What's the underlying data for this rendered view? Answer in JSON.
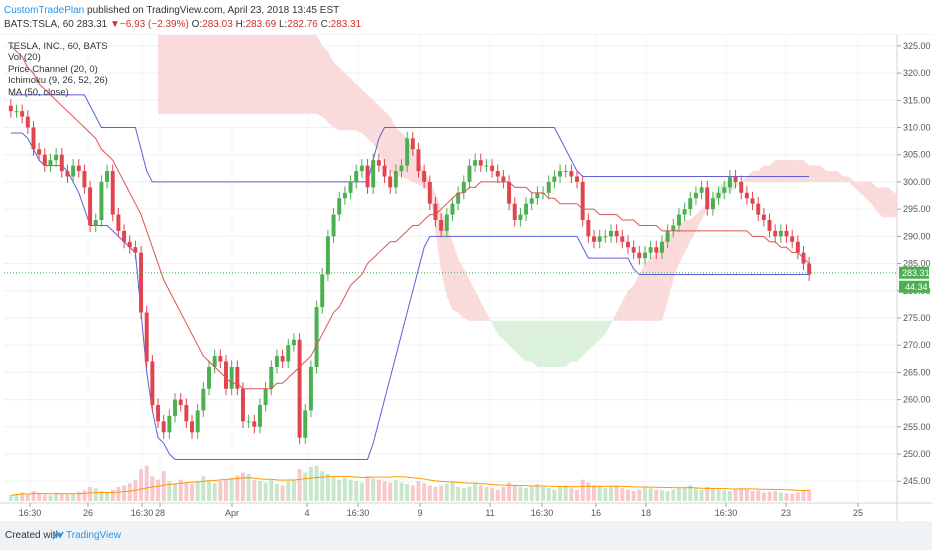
{
  "header": {
    "author": "CustomTradePlan",
    "published": "published on TradingView.com, April 23, 2018 13:45 EST",
    "symbol": "BATS:TSLA, 60",
    "last": "283.31",
    "change_arrow": "▼",
    "change": "−6.93 (−2.39%)",
    "open_label": "O:",
    "open": "283.03",
    "high_label": "H:",
    "high": "283.69",
    "low_label": "L:",
    "low": "282.76",
    "close_label": "C:",
    "close": "283.31"
  },
  "legend": {
    "title": "TESLA, INC., 60, BATS",
    "vol": "Vol (20)",
    "price_channel": "Price Channel (20, 0)",
    "ichimoku": "Ichimoku (9, 26, 52, 26)",
    "ma": "MA (50, close)"
  },
  "footer": {
    "created_with": "Created with",
    "brand": "TradingView",
    "logo_icon": "tradingview-logo-icon"
  },
  "colors": {
    "up": "#4caf50",
    "down": "#e0454f",
    "channel": "#5c5fd6",
    "ma": "#e05252",
    "cloud_bull": "#d6efd6",
    "cloud_bear": "#f9d3d3",
    "vol_ma": "#ff9800",
    "accent": "#2196f3"
  },
  "chart_data": {
    "type": "candlestick",
    "symbol": "BATS:TSLA",
    "interval": "60",
    "ylim": [
      241,
      327
    ],
    "y_ticks": [
      "325.00",
      "320.00",
      "315.00",
      "310.00",
      "305.00",
      "300.00",
      "295.00",
      "290.00",
      "285.00",
      "280.00",
      "275.00",
      "270.00",
      "265.00",
      "260.00",
      "255.00",
      "250.00",
      "245.00"
    ],
    "x_ticks": [
      "16:30",
      "26",
      "16:30",
      "28",
      "Apr",
      "4",
      "16:30",
      "9",
      "11",
      "16:30",
      "16",
      "18",
      "16:30",
      "23",
      "25"
    ],
    "price_label": "283.31",
    "secondary_label": "44.34",
    "close": [
      313,
      313,
      312,
      310,
      306,
      305,
      303,
      304,
      305,
      302,
      301,
      303,
      302,
      299,
      292,
      293,
      300,
      302,
      294,
      291,
      289,
      288,
      287,
      276,
      267,
      259,
      256,
      254,
      257,
      260,
      259,
      256,
      254,
      258,
      262,
      266,
      268,
      267,
      262,
      266,
      262,
      256,
      256,
      255,
      259,
      262,
      266,
      268,
      267,
      270,
      271,
      253,
      258,
      266,
      277,
      283,
      290,
      294,
      297,
      298,
      300,
      302,
      303,
      299,
      304,
      303,
      301,
      299,
      302,
      303,
      308,
      306,
      302,
      300,
      296,
      293,
      291,
      294,
      296,
      298,
      300,
      303,
      304,
      303,
      303,
      302,
      301,
      300,
      296,
      293,
      294,
      296,
      297,
      298,
      298,
      300,
      301,
      302,
      302,
      301,
      300,
      293,
      290,
      289,
      290,
      290,
      291,
      290,
      289,
      288,
      287,
      286,
      287,
      288,
      287,
      289,
      291,
      292,
      294,
      295,
      297,
      298,
      299,
      295,
      297,
      298,
      299,
      301,
      300,
      298,
      297,
      296,
      294,
      293,
      291,
      290,
      291,
      290,
      289,
      287,
      285,
      283
    ],
    "ma50": [
      325,
      324,
      323,
      321,
      320,
      318,
      317,
      316,
      315,
      314,
      313,
      312,
      311,
      310,
      309,
      308,
      306,
      305,
      304,
      302,
      300,
      298,
      296,
      294,
      291,
      288,
      285,
      282,
      280,
      278,
      276,
      274,
      272,
      270,
      268,
      267,
      266,
      265,
      264,
      263,
      263,
      262,
      262,
      262,
      262,
      262,
      262,
      263,
      263,
      264,
      265,
      266,
      267,
      268,
      270,
      272,
      274,
      276,
      277,
      279,
      281,
      282,
      283,
      285,
      286,
      287,
      288,
      289,
      289,
      290,
      291,
      292,
      292,
      293,
      294,
      294,
      295,
      296,
      297,
      298,
      298,
      299,
      299,
      300,
      300,
      300,
      300,
      300,
      300,
      299,
      299,
      299,
      298,
      298,
      298,
      297,
      297,
      296,
      296,
      296,
      296,
      295,
      295,
      295,
      294,
      294,
      294,
      294,
      293,
      293,
      293,
      292,
      292,
      292,
      292,
      291,
      291,
      291,
      291,
      291,
      291,
      291,
      291,
      291,
      291,
      291,
      291,
      291,
      291,
      291,
      291,
      290,
      290,
      290,
      289,
      289,
      288,
      288,
      287,
      287,
      286,
      285
    ],
    "channel_upper": [
      316,
      316,
      316,
      316,
      316,
      316,
      316,
      316,
      316,
      316,
      316,
      316,
      316,
      316,
      314,
      312,
      310,
      310,
      310,
      310,
      310,
      310,
      310,
      306,
      302,
      300,
      300,
      300,
      300,
      300,
      300,
      300,
      300,
      300,
      300,
      300,
      300,
      300,
      300,
      300,
      300,
      300,
      300,
      300,
      300,
      300,
      300,
      300,
      300,
      300,
      300,
      300,
      300,
      300,
      300,
      300,
      300,
      300,
      300,
      300,
      300,
      300,
      300,
      300,
      304,
      308,
      310,
      310,
      310,
      310,
      310,
      310,
      310,
      310,
      310,
      310,
      310,
      310,
      310,
      310,
      310,
      310,
      310,
      310,
      310,
      310,
      310,
      310,
      310,
      310,
      310,
      310,
      310,
      310,
      310,
      310,
      310,
      308,
      306,
      304,
      302,
      301,
      301,
      301,
      301,
      301,
      301,
      301,
      301,
      301,
      301,
      301,
      301,
      301,
      301,
      301,
      301,
      301,
      301,
      301,
      301,
      301,
      301,
      301,
      301,
      301,
      301,
      301,
      301,
      301,
      301,
      301,
      301,
      301,
      301,
      301,
      301,
      301,
      301,
      301,
      301,
      301
    ],
    "channel_lower": [
      309,
      309,
      309,
      308,
      306,
      304,
      303,
      303,
      303,
      303,
      302,
      300,
      298,
      295,
      292,
      292,
      292,
      292,
      291,
      290,
      289,
      288,
      287,
      276,
      265,
      258,
      253,
      252,
      250,
      249,
      249,
      249,
      249,
      249,
      249,
      249,
      249,
      249,
      249,
      249,
      249,
      249,
      249,
      249,
      249,
      249,
      249,
      249,
      249,
      249,
      249,
      249,
      249,
      249,
      249,
      249,
      249,
      249,
      249,
      249,
      249,
      249,
      249,
      249,
      252,
      256,
      260,
      264,
      268,
      272,
      276,
      280,
      284,
      288,
      290,
      290,
      290,
      290,
      290,
      290,
      290,
      290,
      290,
      290,
      290,
      290,
      290,
      290,
      290,
      290,
      290,
      290,
      290,
      290,
      290,
      290,
      290,
      290,
      290,
      290,
      290,
      288,
      286,
      286,
      286,
      286,
      286,
      286,
      286,
      286,
      284,
      283,
      283,
      283,
      283,
      283,
      283,
      283,
      283,
      283,
      283,
      283,
      283,
      283,
      283,
      283,
      283,
      283,
      283,
      283,
      283,
      283,
      283,
      283,
      283,
      283,
      283,
      283,
      283,
      283,
      283,
      283
    ],
    "volume_rel": [
      0.08,
      0.1,
      0.12,
      0.09,
      0.14,
      0.11,
      0.09,
      0.08,
      0.12,
      0.1,
      0.09,
      0.11,
      0.13,
      0.15,
      0.2,
      0.18,
      0.14,
      0.12,
      0.16,
      0.2,
      0.22,
      0.25,
      0.3,
      0.45,
      0.5,
      0.35,
      0.3,
      0.42,
      0.28,
      0.25,
      0.3,
      0.26,
      0.24,
      0.28,
      0.35,
      0.3,
      0.25,
      0.28,
      0.3,
      0.33,
      0.36,
      0.4,
      0.38,
      0.3,
      0.28,
      0.26,
      0.3,
      0.24,
      0.22,
      0.28,
      0.3,
      0.45,
      0.4,
      0.48,
      0.5,
      0.42,
      0.38,
      0.35,
      0.3,
      0.33,
      0.3,
      0.28,
      0.26,
      0.35,
      0.32,
      0.3,
      0.28,
      0.26,
      0.3,
      0.26,
      0.24,
      0.22,
      0.28,
      0.25,
      0.22,
      0.2,
      0.22,
      0.24,
      0.26,
      0.2,
      0.18,
      0.2,
      0.25,
      0.22,
      0.2,
      0.18,
      0.16,
      0.2,
      0.26,
      0.22,
      0.2,
      0.18,
      0.2,
      0.24,
      0.2,
      0.18,
      0.16,
      0.2,
      0.22,
      0.18,
      0.16,
      0.3,
      0.26,
      0.22,
      0.2,
      0.18,
      0.2,
      0.22,
      0.18,
      0.16,
      0.14,
      0.16,
      0.2,
      0.18,
      0.16,
      0.15,
      0.14,
      0.16,
      0.18,
      0.2,
      0.22,
      0.18,
      0.16,
      0.2,
      0.18,
      0.16,
      0.15,
      0.14,
      0.16,
      0.18,
      0.16,
      0.14,
      0.15,
      0.12,
      0.13,
      0.14,
      0.12,
      0.11,
      0.1,
      0.12,
      0.14,
      0.16
    ]
  }
}
